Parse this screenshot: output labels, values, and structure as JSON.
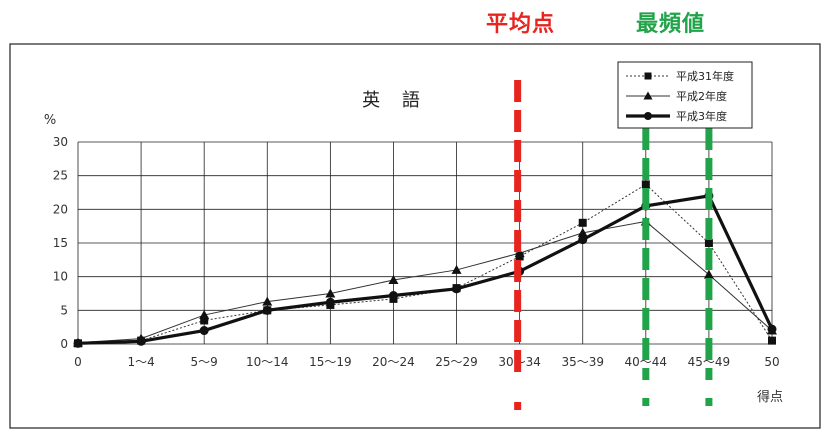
{
  "annotations": {
    "mean_label": "平均点",
    "mode_label": "最頻値",
    "mean_color": "#e8241f",
    "mode_color": "#21a34a"
  },
  "chart_data": {
    "type": "line",
    "title": "英 語",
    "ylabel": "%",
    "xlabel": "得点",
    "ylim": [
      0,
      30
    ],
    "yticks": [
      0,
      5,
      10,
      15,
      20,
      25,
      30
    ],
    "categories": [
      "0",
      "1～4",
      "5～9",
      "10～14",
      "15～19",
      "20～24",
      "25～29",
      "30～34",
      "35～39",
      "40～44",
      "45～49",
      "50"
    ],
    "grid": true,
    "legend_position": "top-right",
    "series": [
      {
        "name": "平成31年度",
        "marker": "square",
        "style": "dotted",
        "values": [
          0.1,
          0.5,
          3.5,
          5.0,
          5.8,
          6.7,
          8.3,
          13.0,
          18.0,
          23.7,
          15.0,
          0.5
        ]
      },
      {
        "name": "平成2年度",
        "marker": "triangle",
        "style": "thin",
        "values": [
          0.2,
          0.8,
          4.3,
          6.3,
          7.5,
          9.5,
          11.0,
          13.5,
          16.5,
          18.2,
          10.3,
          2.0
        ]
      },
      {
        "name": "平成3年度",
        "marker": "circle",
        "style": "thick",
        "values": [
          0.1,
          0.4,
          2.0,
          5.0,
          6.2,
          7.2,
          8.2,
          10.8,
          15.5,
          20.5,
          22.0,
          2.2
        ]
      }
    ],
    "mean_marker_category": "30～34",
    "mode_marker_categories": [
      "40～44",
      "45～49"
    ]
  }
}
